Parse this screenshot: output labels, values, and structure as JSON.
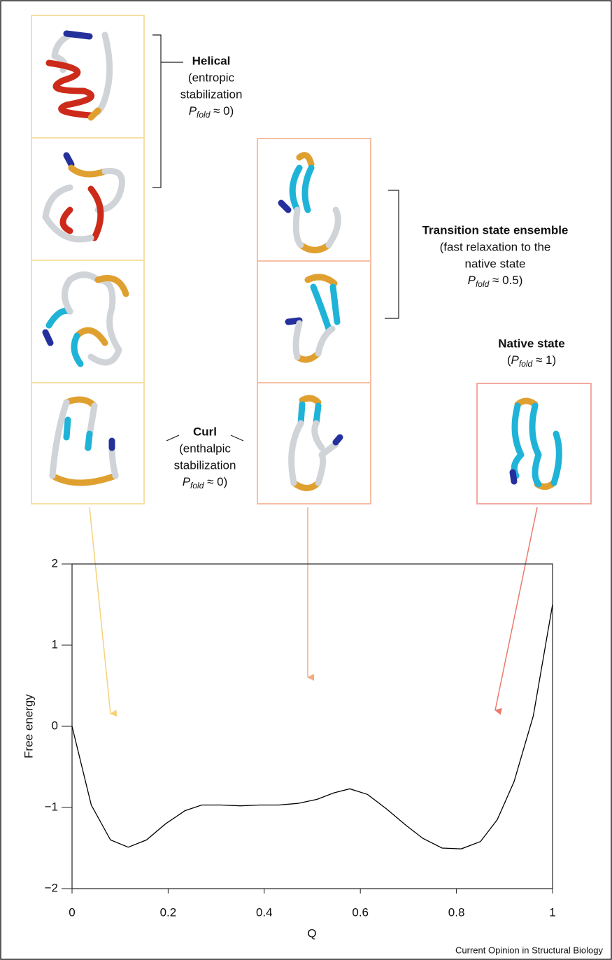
{
  "chart_data": {
    "type": "line",
    "x": [
      0,
      0.04,
      0.08,
      0.117,
      0.155,
      0.195,
      0.235,
      0.27,
      0.31,
      0.35,
      0.39,
      0.43,
      0.47,
      0.51,
      0.545,
      0.578,
      0.615,
      0.655,
      0.695,
      0.73,
      0.77,
      0.81,
      0.85,
      0.885,
      0.92,
      0.96,
      1.0
    ],
    "values": [
      0,
      -0.97,
      -1.4,
      -1.49,
      -1.4,
      -1.2,
      -1.04,
      -0.97,
      -0.97,
      -0.98,
      -0.97,
      -0.97,
      -0.95,
      -0.9,
      -0.82,
      -0.77,
      -0.84,
      -1.02,
      -1.22,
      -1.38,
      -1.5,
      -1.51,
      -1.42,
      -1.15,
      -0.68,
      0.13,
      1.5
    ],
    "color": "#000000",
    "xlim": [
      0,
      1
    ],
    "ylim": [
      -2,
      2
    ],
    "xticks": [
      0,
      0.2,
      0.4,
      0.6,
      0.8,
      1
    ],
    "yticks": [
      {
        "value": -2,
        "label": "−2"
      },
      {
        "value": -1,
        "label": "−1"
      },
      0,
      1,
      2
    ],
    "xlabel": "Q",
    "ylabel": "Free energy",
    "source": "Current Opinion in Structural Biology",
    "annotations": {
      "helical": {
        "title": "Helical",
        "lines": [
          "(entropic",
          "stabilization"
        ],
        "pfold": {
          "symbol": "P",
          "subscript": "fold",
          "rest": " ≈ 0)"
        }
      },
      "transition": {
        "title": "Transition state ensemble",
        "lines": [
          "(fast relaxation to the",
          "native state"
        ],
        "pfold": {
          "symbol": "P",
          "subscript": "fold",
          "rest": " ≈ 0.5)"
        }
      },
      "native": {
        "title": "Native state",
        "pfold": {
          "lead": "(",
          "symbol": "P",
          "subscript": "fold",
          "rest": " ≈ 1)"
        }
      },
      "curl": {
        "title": "Curl",
        "lines": [
          "(enthalpic",
          "stabilization"
        ],
        "pfold": {
          "symbol": "P",
          "subscript": "fold",
          "rest": " ≈ 0)"
        }
      }
    }
  }
}
